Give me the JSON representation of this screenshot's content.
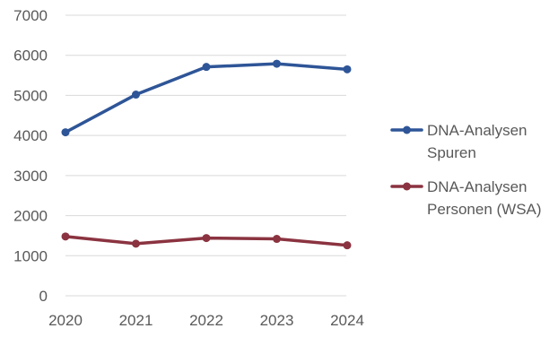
{
  "chart_data": {
    "type": "line",
    "x": [
      "2020",
      "2021",
      "2022",
      "2023",
      "2024"
    ],
    "ylim": [
      0,
      7000
    ],
    "yticks": [
      0,
      1000,
      2000,
      3000,
      4000,
      5000,
      6000,
      7000
    ],
    "grid": true,
    "legend_position": "right",
    "series": [
      {
        "name_lines": [
          "DNA-Analysen",
          "Spuren"
        ],
        "color": "#2e5597",
        "values": [
          4080,
          5020,
          5710,
          5790,
          5650
        ]
      },
      {
        "name_lines": [
          "DNA-Analysen",
          "Personen (WSA)"
        ],
        "color": "#8b3340",
        "values": [
          1480,
          1300,
          1440,
          1420,
          1260
        ]
      }
    ]
  }
}
